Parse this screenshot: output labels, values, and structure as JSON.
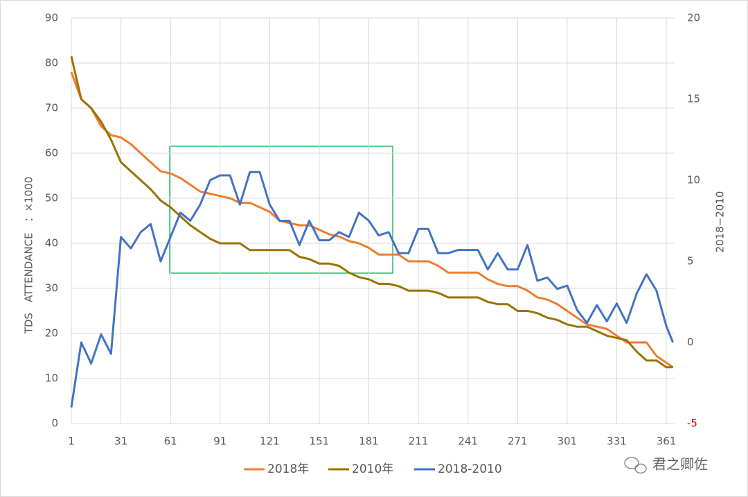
{
  "chart_data": {
    "type": "line",
    "y_label": "TDS　ATTENDANCE　：×1000",
    "y2_label": "2018−2010",
    "watermark": "君之卿佐",
    "x": [
      1,
      7,
      13,
      19,
      25,
      31,
      37,
      43,
      49,
      55,
      61,
      67,
      73,
      79,
      85,
      91,
      97,
      103,
      109,
      115,
      121,
      127,
      133,
      139,
      145,
      151,
      157,
      163,
      169,
      175,
      181,
      187,
      193,
      199,
      205,
      211,
      217,
      223,
      229,
      235,
      241,
      247,
      253,
      259,
      265,
      271,
      277,
      283,
      289,
      295,
      301,
      307,
      313,
      319,
      325,
      331,
      337,
      343,
      349,
      355,
      361,
      365
    ],
    "xlim": [
      1,
      366
    ],
    "xticks": [
      1,
      31,
      61,
      91,
      121,
      151,
      181,
      211,
      241,
      271,
      301,
      331,
      361
    ],
    "ylim": [
      0,
      90
    ],
    "yticks": [
      0,
      10,
      20,
      30,
      40,
      50,
      60,
      70,
      80,
      90
    ],
    "y2lim": [
      -5,
      20
    ],
    "y2ticks": [
      -5,
      0,
      5,
      10,
      15,
      20
    ],
    "y2tick_colors": [
      "#c00000",
      "#595959",
      "#595959",
      "#595959",
      "#595959",
      "#595959"
    ],
    "grid": true,
    "legend": "bottom",
    "series": [
      {
        "name": "2018年",
        "color": "#ed7d31",
        "values": [
          78,
          72,
          70,
          66,
          64,
          63.5,
          62,
          60,
          58,
          56,
          55.5,
          54.5,
          53,
          51.5,
          51,
          50.5,
          50,
          49,
          49,
          48,
          47,
          45,
          44.5,
          44,
          44,
          43,
          42,
          41.5,
          40.5,
          40,
          39,
          37.5,
          37.5,
          37.5,
          36,
          36,
          36,
          35,
          33.5,
          33.5,
          33.5,
          33.5,
          32,
          31,
          30.5,
          30.5,
          29.5,
          28,
          27.5,
          26.5,
          25,
          23.5,
          22,
          21.5,
          21,
          19.5,
          18,
          18,
          18,
          15,
          13.5,
          12.5
        ]
      },
      {
        "name": "2010年",
        "color": "#997300",
        "values": [
          81.5,
          72,
          70,
          67,
          63,
          58,
          56,
          54,
          52,
          49.5,
          48,
          46,
          44,
          42.5,
          41,
          40,
          40,
          40,
          38.5,
          38.5,
          38.5,
          38.5,
          38.5,
          37,
          36.5,
          35.5,
          35.5,
          35,
          33.5,
          32.5,
          32,
          31,
          31,
          30.5,
          29.5,
          29.5,
          29.5,
          29,
          28,
          28,
          28,
          28,
          27,
          26.5,
          26.5,
          25,
          25,
          24.5,
          23.5,
          23,
          22,
          21.5,
          21.5,
          20.5,
          19.5,
          19,
          18.5,
          16,
          14,
          14,
          12.5,
          12.5
        ]
      },
      {
        "name": "2018-2010",
        "color": "#4472c4",
        "axis": "y2",
        "values": [
          -4,
          0,
          -1.3,
          0.5,
          -0.7,
          6.5,
          5.8,
          6.8,
          7.3,
          5,
          6.5,
          8,
          7.5,
          8.5,
          10,
          10.3,
          10.3,
          8.5,
          10.5,
          10.5,
          8.5,
          7.5,
          7.5,
          6,
          7.5,
          6.3,
          6.3,
          6.8,
          6.5,
          8,
          7.5,
          6.6,
          6.8,
          5.5,
          5.5,
          7,
          7,
          5.5,
          5.5,
          5.7,
          5.7,
          5.7,
          4.5,
          5.5,
          4.5,
          4.5,
          6,
          3.8,
          4,
          3.3,
          3.5,
          2,
          1.2,
          2.3,
          1.3,
          2.4,
          1.2,
          3,
          4.2,
          3.2,
          1,
          0
        ]
      }
    ]
  }
}
